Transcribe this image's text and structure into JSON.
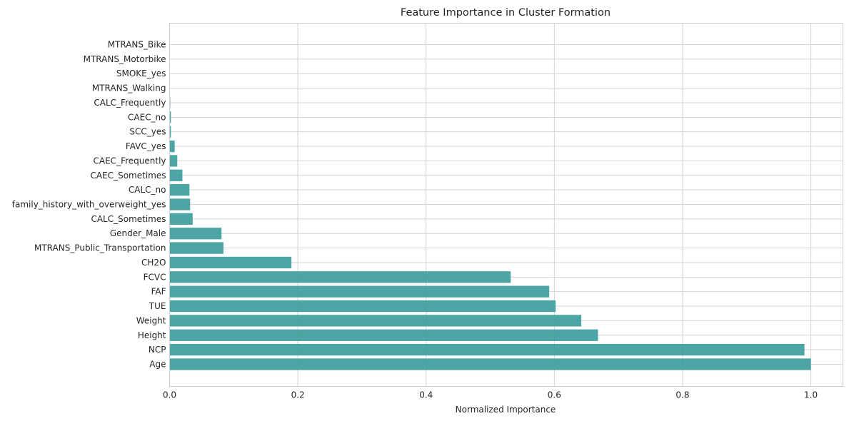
{
  "chart_data": {
    "type": "bar",
    "orientation": "horizontal",
    "title": "Feature Importance in Cluster Formation",
    "xlabel": "Normalized Importance",
    "ylabel": "",
    "xlim": [
      0,
      1.05
    ],
    "xticks": [
      0.0,
      0.2,
      0.4,
      0.6,
      0.8,
      1.0
    ],
    "xtick_labels": [
      "0.0",
      "0.2",
      "0.4",
      "0.6",
      "0.8",
      "1.0"
    ],
    "grid": true,
    "bar_color": "#3a9c9b",
    "categories": [
      "Age",
      "NCP",
      "Height",
      "Weight",
      "TUE",
      "FAF",
      "FCVC",
      "CH2O",
      "MTRANS_Public_Transportation",
      "Gender_Male",
      "CALC_Sometimes",
      "family_history_with_overweight_yes",
      "CALC_no",
      "CAEC_Sometimes",
      "CAEC_Frequently",
      "FAVC_yes",
      "SCC_yes",
      "CAEC_no",
      "CALC_Frequently",
      "MTRANS_Walking",
      "SMOKE_yes",
      "MTRANS_Motorbike",
      "MTRANS_Bike"
    ],
    "values": [
      1.0,
      0.99,
      0.668,
      0.642,
      0.602,
      0.592,
      0.532,
      0.19,
      0.084,
      0.081,
      0.036,
      0.032,
      0.031,
      0.02,
      0.012,
      0.008,
      0.002,
      0.002,
      0.001,
      0.0005,
      0.0003,
      0.0002,
      0.0001
    ]
  }
}
